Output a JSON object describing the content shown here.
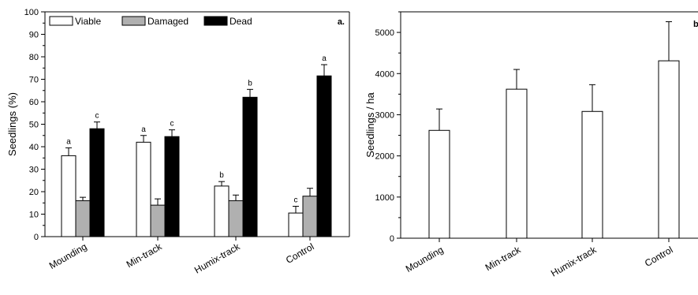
{
  "chart_data": [
    {
      "type": "bar",
      "panel_label": "a.",
      "title": "",
      "xlabel": "",
      "ylabel": "Seedlings (%)",
      "ylim": [
        0,
        100
      ],
      "yticks": [
        0,
        10,
        20,
        30,
        40,
        50,
        60,
        70,
        80,
        90,
        100
      ],
      "categories": [
        "Mounding",
        "Min-track",
        "Humix-track",
        "Control"
      ],
      "legend": "top-left",
      "series": [
        {
          "name": "Viable",
          "color": "#ffffff",
          "values": [
            36,
            42,
            22.5,
            10.5
          ],
          "errors": [
            3.5,
            3,
            2,
            3
          ],
          "letters": [
            "a",
            "a",
            "b",
            "c"
          ]
        },
        {
          "name": "Damaged",
          "color": "#b0b0b0",
          "values": [
            16,
            14,
            16,
            18
          ],
          "errors": [
            1.5,
            2.8,
            2.5,
            3.5
          ],
          "letters": [
            "",
            "",
            "",
            ""
          ]
        },
        {
          "name": "Dead",
          "color": "#000000",
          "values": [
            48,
            44.5,
            62,
            71.5
          ],
          "errors": [
            3,
            3,
            3.5,
            5
          ],
          "letters": [
            "c",
            "c",
            "b",
            "a"
          ]
        }
      ]
    },
    {
      "type": "bar",
      "panel_label": "b",
      "title": "",
      "xlabel": "",
      "ylabel": "Seedlings / ha",
      "ylim": [
        0,
        5500
      ],
      "yticks": [
        0,
        1000,
        2000,
        3000,
        4000,
        5000
      ],
      "categories": [
        "Mounding",
        "Min-track",
        "Humix-track",
        "Control"
      ],
      "series": [
        {
          "color": "#ffffff",
          "values": [
            2620,
            3620,
            3080,
            4310
          ],
          "errors": [
            520,
            480,
            650,
            950
          ]
        }
      ]
    }
  ]
}
